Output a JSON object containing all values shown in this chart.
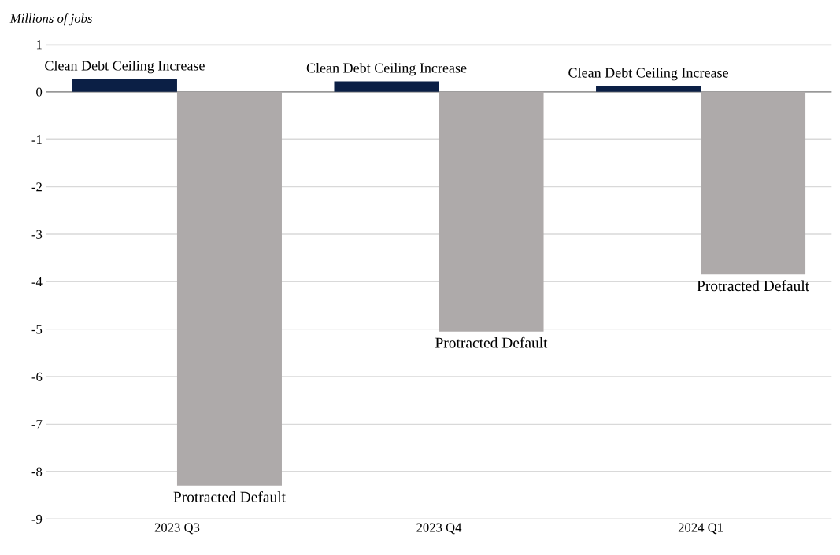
{
  "chart_data": {
    "type": "bar",
    "ylabel": "Millions of jobs",
    "categories": [
      "2023 Q3",
      "2023 Q4",
      "2024 Q1"
    ],
    "series": [
      {
        "name": "Clean Debt Ceiling Increase",
        "color": "#0b1f45",
        "values": [
          0.27,
          0.22,
          0.12
        ]
      },
      {
        "name": "Protracted Default",
        "color": "#aeaaaa",
        "values": [
          -8.3,
          -5.05,
          -3.85
        ]
      }
    ],
    "ylim": [
      -9,
      1
    ],
    "yticks": [
      -9,
      -8,
      -7,
      -6,
      -5,
      -4,
      -3,
      -2,
      -1,
      0,
      1
    ],
    "grid": "y",
    "legend": false
  }
}
